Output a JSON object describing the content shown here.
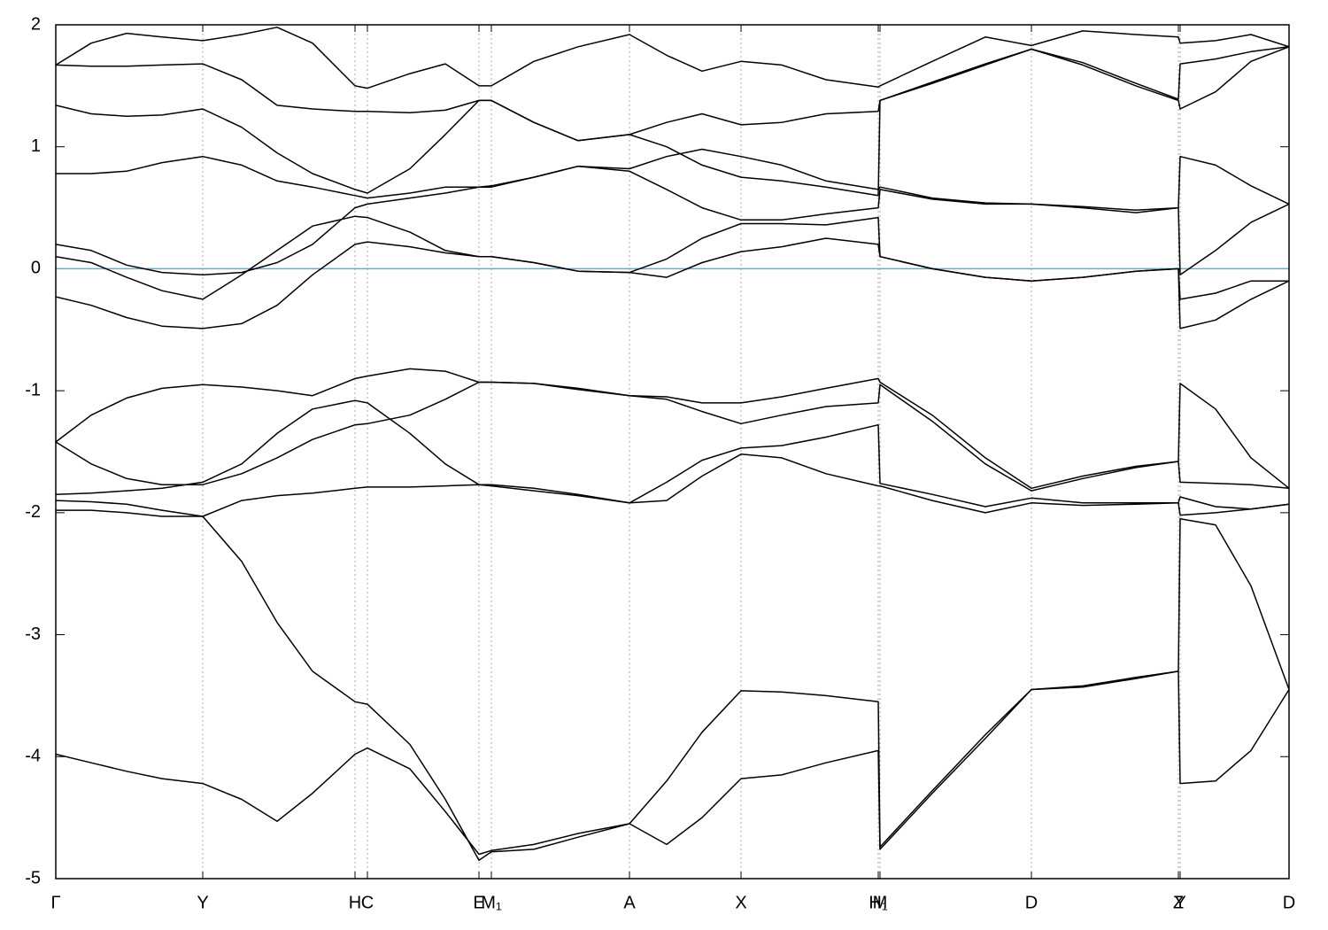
{
  "chart_data": {
    "type": "line",
    "x": [
      0,
      0.04,
      0.08,
      0.12,
      0.166,
      0.21,
      0.25,
      0.29,
      0.338,
      0.352,
      0.4,
      0.44,
      0.478,
      0.492,
      0.54,
      0.59,
      0.648,
      0.69,
      0.73,
      0.774,
      0.82,
      0.87,
      0.929,
      0.931,
      0.99,
      1.05,
      1.102,
      1.16,
      1.22,
      1.268,
      1.27,
      1.31,
      1.35,
      1.393
    ],
    "xlim": [
      0,
      1.393
    ],
    "xticks": [
      {
        "value": 0,
        "label": "Γ"
      },
      {
        "value": 0.166,
        "label": "Y"
      },
      {
        "value": 0.338,
        "label": "H"
      },
      {
        "value": 0.352,
        "label": "C"
      },
      {
        "value": 0.478,
        "label": "E"
      },
      {
        "value": 0.492,
        "label": "M₁"
      },
      {
        "value": 0.648,
        "label": "A"
      },
      {
        "value": 0.774,
        "label": "X"
      },
      {
        "value": 0.929,
        "label": "H₁"
      },
      {
        "value": 0.931,
        "label": "M"
      },
      {
        "value": 1.102,
        "label": "D"
      },
      {
        "value": 1.268,
        "label": "Z"
      },
      {
        "value": 1.27,
        "label": "Y"
      },
      {
        "value": 1.393,
        "label": "D"
      }
    ],
    "ylim": [
      -5,
      2
    ],
    "yticks": [
      -5,
      -4,
      -3,
      -2,
      -1,
      0,
      1,
      2
    ],
    "xgrid": true,
    "hline": {
      "value": 0,
      "color": "#5ab4c8"
    },
    "series": [
      {
        "color": "#000000",
        "values": [
          -3.98,
          -4.05,
          -4.12,
          -4.18,
          -4.22,
          -4.35,
          -4.53,
          -4.3,
          -3.98,
          -3.93,
          -4.1,
          -4.45,
          -4.8,
          -4.77,
          -4.72,
          -4.63,
          -4.55,
          -4.72,
          -4.5,
          -4.18,
          -4.15,
          -4.05,
          -3.95,
          -4.76,
          -4.3,
          -3.85,
          -3.45,
          -3.42,
          -3.35,
          -3.3,
          -4.22,
          -4.2,
          -3.95,
          -3.45
        ]
      },
      {
        "color": "#000000",
        "values": [
          -1.98,
          -1.98,
          -2.0,
          -2.03,
          -2.03,
          -2.4,
          -2.9,
          -3.3,
          -3.55,
          -3.57,
          -3.9,
          -4.35,
          -4.85,
          -4.78,
          -4.76,
          -4.66,
          -4.55,
          -4.2,
          -3.8,
          -3.46,
          -3.47,
          -3.5,
          -3.55,
          -4.74,
          -4.28,
          -3.82,
          -3.45,
          -3.43,
          -3.36,
          -3.3,
          -2.05,
          -2.1,
          -2.6,
          -3.45
        ]
      },
      {
        "color": "#000000",
        "values": [
          -1.9,
          -1.91,
          -1.93,
          -1.98,
          -2.03,
          -1.9,
          -1.86,
          -1.84,
          -1.8,
          -1.79,
          -1.79,
          -1.78,
          -1.77,
          -1.78,
          -1.82,
          -1.86,
          -1.92,
          -1.9,
          -1.7,
          -1.52,
          -1.55,
          -1.68,
          -1.78,
          -1.78,
          -1.9,
          -2.0,
          -1.92,
          -1.94,
          -1.93,
          -1.92,
          -2.02,
          -2.0,
          -1.97,
          -1.93
        ]
      },
      {
        "color": "#000000",
        "values": [
          -1.85,
          -1.84,
          -1.82,
          -1.8,
          -1.75,
          -1.6,
          -1.35,
          -1.15,
          -1.08,
          -1.1,
          -1.35,
          -1.6,
          -1.77,
          -1.77,
          -1.8,
          -1.85,
          -1.92,
          -1.75,
          -1.57,
          -1.47,
          -1.45,
          -1.38,
          -1.28,
          -1.76,
          -1.85,
          -1.95,
          -1.88,
          -1.92,
          -1.92,
          -1.92,
          -1.87,
          -1.95,
          -1.97,
          -1.93
        ]
      },
      {
        "color": "#000000",
        "values": [
          -1.42,
          -1.6,
          -1.72,
          -1.77,
          -1.77,
          -1.68,
          -1.55,
          -1.4,
          -1.28,
          -1.27,
          -1.2,
          -1.07,
          -0.93,
          -0.93,
          -0.94,
          -0.98,
          -1.04,
          -1.05,
          -1.1,
          -1.1,
          -1.05,
          -0.98,
          -0.9,
          -0.93,
          -1.2,
          -1.55,
          -1.8,
          -1.7,
          -1.62,
          -1.58,
          -0.94,
          -1.15,
          -1.55,
          -1.8
        ]
      },
      {
        "color": "#000000",
        "values": [
          -1.42,
          -1.2,
          -1.06,
          -0.98,
          -0.95,
          -0.97,
          -1.0,
          -1.04,
          -0.9,
          -0.88,
          -0.82,
          -0.84,
          -0.93,
          -0.93,
          -0.94,
          -0.99,
          -1.04,
          -1.07,
          -1.17,
          -1.27,
          -1.2,
          -1.13,
          -1.1,
          -0.95,
          -1.25,
          -1.6,
          -1.82,
          -1.72,
          -1.63,
          -1.58,
          -1.75,
          -1.76,
          -1.77,
          -1.8
        ]
      },
      {
        "color": "#000000",
        "values": [
          -0.23,
          -0.3,
          -0.4,
          -0.47,
          -0.49,
          -0.45,
          -0.3,
          -0.05,
          0.2,
          0.22,
          0.18,
          0.13,
          0.1,
          0.1,
          0.05,
          -0.02,
          -0.03,
          -0.07,
          0.05,
          0.14,
          0.18,
          0.25,
          0.2,
          0.1,
          0.0,
          -0.07,
          -0.1,
          -0.07,
          -0.02,
          0.0,
          -0.49,
          -0.42,
          -0.25,
          -0.1
        ]
      },
      {
        "color": "#000000",
        "values": [
          0.1,
          0.05,
          -0.07,
          -0.18,
          -0.25,
          -0.05,
          0.15,
          0.35,
          0.43,
          0.42,
          0.3,
          0.15,
          0.1,
          0.1,
          0.05,
          -0.02,
          -0.03,
          0.08,
          0.25,
          0.37,
          0.37,
          0.36,
          0.42,
          0.1,
          0.0,
          -0.07,
          -0.1,
          -0.07,
          -0.02,
          0.0,
          -0.25,
          -0.2,
          -0.1,
          -0.1
        ]
      },
      {
        "color": "#000000",
        "values": [
          0.2,
          0.15,
          0.03,
          -0.03,
          -0.05,
          -0.03,
          0.05,
          0.2,
          0.5,
          0.53,
          0.58,
          0.62,
          0.67,
          0.67,
          0.75,
          0.84,
          0.8,
          0.65,
          0.5,
          0.4,
          0.4,
          0.45,
          0.5,
          0.65,
          0.57,
          0.53,
          0.53,
          0.5,
          0.46,
          0.5,
          -0.05,
          0.15,
          0.38,
          0.53
        ]
      },
      {
        "color": "#000000",
        "values": [
          0.78,
          0.78,
          0.8,
          0.87,
          0.92,
          0.85,
          0.72,
          0.67,
          0.6,
          0.58,
          0.62,
          0.67,
          0.67,
          0.68,
          0.75,
          0.84,
          0.82,
          0.92,
          0.98,
          0.92,
          0.85,
          0.72,
          0.65,
          0.67,
          0.58,
          0.54,
          0.53,
          0.51,
          0.48,
          0.5,
          0.92,
          0.85,
          0.68,
          0.53
        ]
      },
      {
        "color": "#000000",
        "values": [
          1.34,
          1.27,
          1.25,
          1.26,
          1.31,
          1.16,
          0.95,
          0.78,
          0.65,
          0.62,
          0.82,
          1.1,
          1.38,
          1.38,
          1.2,
          1.05,
          1.1,
          1.0,
          0.85,
          0.75,
          0.72,
          0.67,
          0.6,
          1.38,
          1.52,
          1.67,
          1.8,
          1.67,
          1.5,
          1.38,
          1.31,
          1.45,
          1.7,
          1.82
        ]
      },
      {
        "color": "#000000",
        "values": [
          1.67,
          1.66,
          1.66,
          1.67,
          1.68,
          1.55,
          1.34,
          1.31,
          1.29,
          1.29,
          1.28,
          1.3,
          1.38,
          1.38,
          1.2,
          1.05,
          1.1,
          1.2,
          1.27,
          1.18,
          1.2,
          1.27,
          1.29,
          1.38,
          1.53,
          1.68,
          1.8,
          1.69,
          1.52,
          1.39,
          1.68,
          1.72,
          1.78,
          1.82
        ]
      },
      {
        "color": "#000000",
        "values": [
          1.67,
          1.85,
          1.93,
          1.9,
          1.87,
          1.92,
          1.98,
          1.85,
          1.5,
          1.48,
          1.6,
          1.68,
          1.5,
          1.5,
          1.7,
          1.82,
          1.92,
          1.75,
          1.62,
          1.7,
          1.67,
          1.55,
          1.49,
          1.5,
          1.7,
          1.9,
          1.83,
          1.95,
          1.92,
          1.9,
          1.85,
          1.87,
          1.92,
          1.82
        ]
      }
    ]
  }
}
